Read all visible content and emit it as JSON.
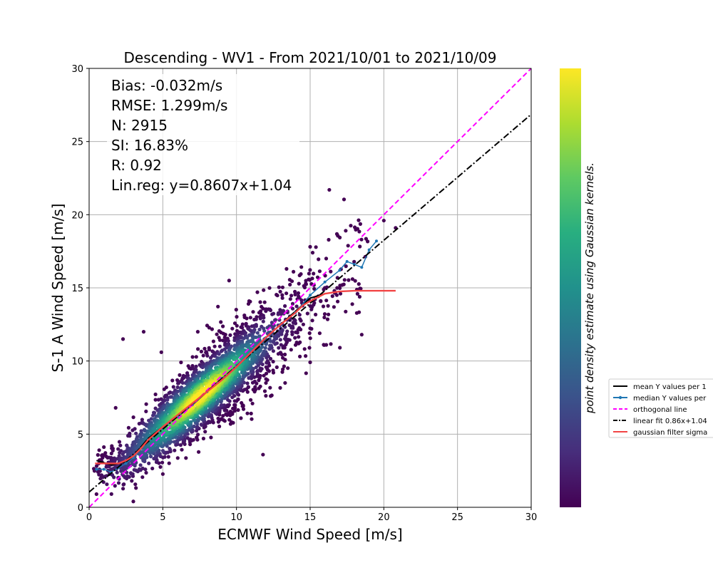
{
  "chart_data": {
    "type": "scatter",
    "title": "Descending - WV1 - From 2021/10/01 to 2021/10/09",
    "xlabel": "ECMWF Wind Speed [m/s]",
    "ylabel": "S-1 A Wind Speed [m/s]",
    "xlim": [
      0,
      30
    ],
    "ylim": [
      0,
      30
    ],
    "xticks": [
      "0",
      "5",
      "10",
      "15",
      "20",
      "25",
      "30"
    ],
    "yticks": [
      "0",
      "5",
      "10",
      "15",
      "20",
      "25",
      "30"
    ],
    "grid": true,
    "colormap": "viridis",
    "colorbar_label": "point density estimate using Gaussian kernels.",
    "stats": [
      "Bias: -0.032m/s",
      "RMSE: 1.299m/s",
      "N: 2915",
      "SI: 16.83%",
      "R: 0.92",
      "Lin.reg: y=0.8607x+1.04"
    ],
    "legend": {
      "placement": "right, outside plot",
      "entries": [
        {
          "label": "mean Y values per 1",
          "color": "#000000",
          "style": "solid"
        },
        {
          "label": "median Y values per",
          "color": "#1f77b4",
          "style": "solid-marker"
        },
        {
          "label": "orthogonal line",
          "color": "#ff00ff",
          "style": "dashed"
        },
        {
          "label": "linear fit 0.86x+1.04",
          "color": "#000000",
          "style": "dashdot"
        },
        {
          "label": "gaussian filter sigma",
          "color": "#f24444",
          "style": "solid"
        }
      ]
    },
    "series": [
      {
        "kind": "line",
        "color": "#000000",
        "style": "solid",
        "x": [
          0.5,
          1.5,
          2.5,
          3.0,
          3.5,
          4.0,
          4.5,
          5.0,
          6.0,
          7.0,
          8.0,
          9.0,
          10.0,
          11.0,
          12.0,
          13.0,
          14.0,
          15.0,
          16.0
        ],
        "y": [
          3.2,
          2.9,
          3.1,
          3.5,
          4.1,
          4.7,
          5.1,
          5.5,
          6.2,
          7.0,
          7.9,
          8.8,
          9.6,
          10.6,
          11.6,
          12.5,
          13.4,
          14.3,
          14.6
        ]
      },
      {
        "kind": "line",
        "color": "#1f77b4",
        "style": "solid-marker",
        "x": [
          0.5,
          1.0,
          1.5,
          2.0,
          2.5,
          3.0,
          3.5,
          4.0,
          5.0,
          6.0,
          7.0,
          8.0,
          9.0,
          10.0,
          11.0,
          12.0,
          13.0,
          14.0,
          15.0,
          16.0,
          17.0,
          17.5,
          18.0,
          18.5,
          19.0,
          19.5
        ],
        "y": [
          2.6,
          2.6,
          2.4,
          2.7,
          3.0,
          3.4,
          4.0,
          4.6,
          5.4,
          6.2,
          7.0,
          7.9,
          8.8,
          9.7,
          10.7,
          11.6,
          12.5,
          13.3,
          14.5,
          15.4,
          16.2,
          16.8,
          16.6,
          16.4,
          17.6,
          18.2
        ]
      },
      {
        "kind": "line",
        "color": "#ff00ff",
        "style": "dashed",
        "x": [
          0,
          30
        ],
        "y": [
          0,
          30
        ]
      },
      {
        "kind": "line",
        "color": "#000000",
        "style": "dashdot",
        "x": [
          0,
          30
        ],
        "y": [
          1.04,
          26.861
        ]
      },
      {
        "kind": "line",
        "color": "#f24444",
        "style": "solid",
        "x": [
          0.4,
          1.5,
          2.0,
          2.5,
          3.0,
          3.5,
          4.0,
          5.0,
          6.0,
          7.0,
          8.0,
          9.0,
          10.0,
          11.0,
          12.0,
          13.0,
          14.0,
          14.5,
          15.0,
          16.0,
          17.0,
          18.0,
          19.0,
          20.0,
          20.8
        ],
        "y": [
          3.0,
          3.0,
          3.0,
          3.2,
          3.5,
          4.0,
          4.6,
          5.5,
          6.3,
          7.1,
          7.9,
          8.7,
          9.6,
          10.6,
          11.6,
          12.5,
          13.3,
          13.8,
          14.1,
          14.6,
          14.75,
          14.8,
          14.8,
          14.8,
          14.8
        ]
      }
    ],
    "scatter_outliers": {
      "x": [
        16.3,
        20.0,
        20.8,
        9.5,
        3.7,
        2.3,
        11.8,
        18.5,
        4.9,
        0.5,
        3.0,
        1.8,
        12.0,
        13.3
      ],
      "y": [
        21.7,
        19.6,
        19.1,
        15.5,
        12.0,
        11.5,
        3.6,
        11.8,
        10.6,
        0.9,
        0.4,
        6.8,
        8.5,
        8.5
      ]
    }
  }
}
